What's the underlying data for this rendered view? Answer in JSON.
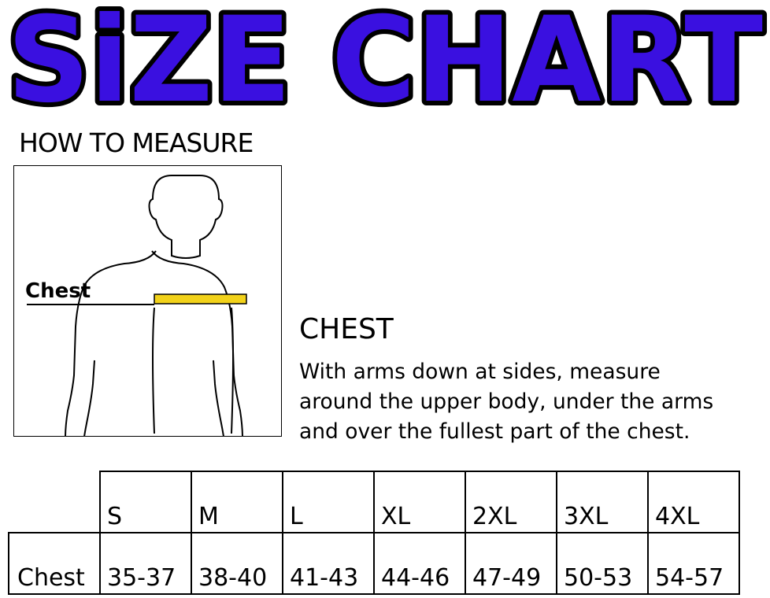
{
  "title": "SiZE CHART",
  "title_color": "#3a10e0",
  "how_to_measure": "HOW TO MEASURE",
  "figure": {
    "chest_label": "Chest",
    "tape_color": "#f2d21a"
  },
  "section": {
    "title": "CHEST",
    "lines": [
      "With arms down at sides, measure",
      "around the upper body, under the arms",
      "and over the fullest part of the chest."
    ]
  },
  "table": {
    "sizes": [
      "S",
      "M",
      "L",
      "XL",
      "2XL",
      "3XL",
      "4XL"
    ],
    "rows": [
      {
        "label": "Chest",
        "values": [
          "35-37",
          "38-40",
          "41-43",
          "44-46",
          "47-49",
          "50-53",
          "54-57"
        ]
      }
    ]
  }
}
